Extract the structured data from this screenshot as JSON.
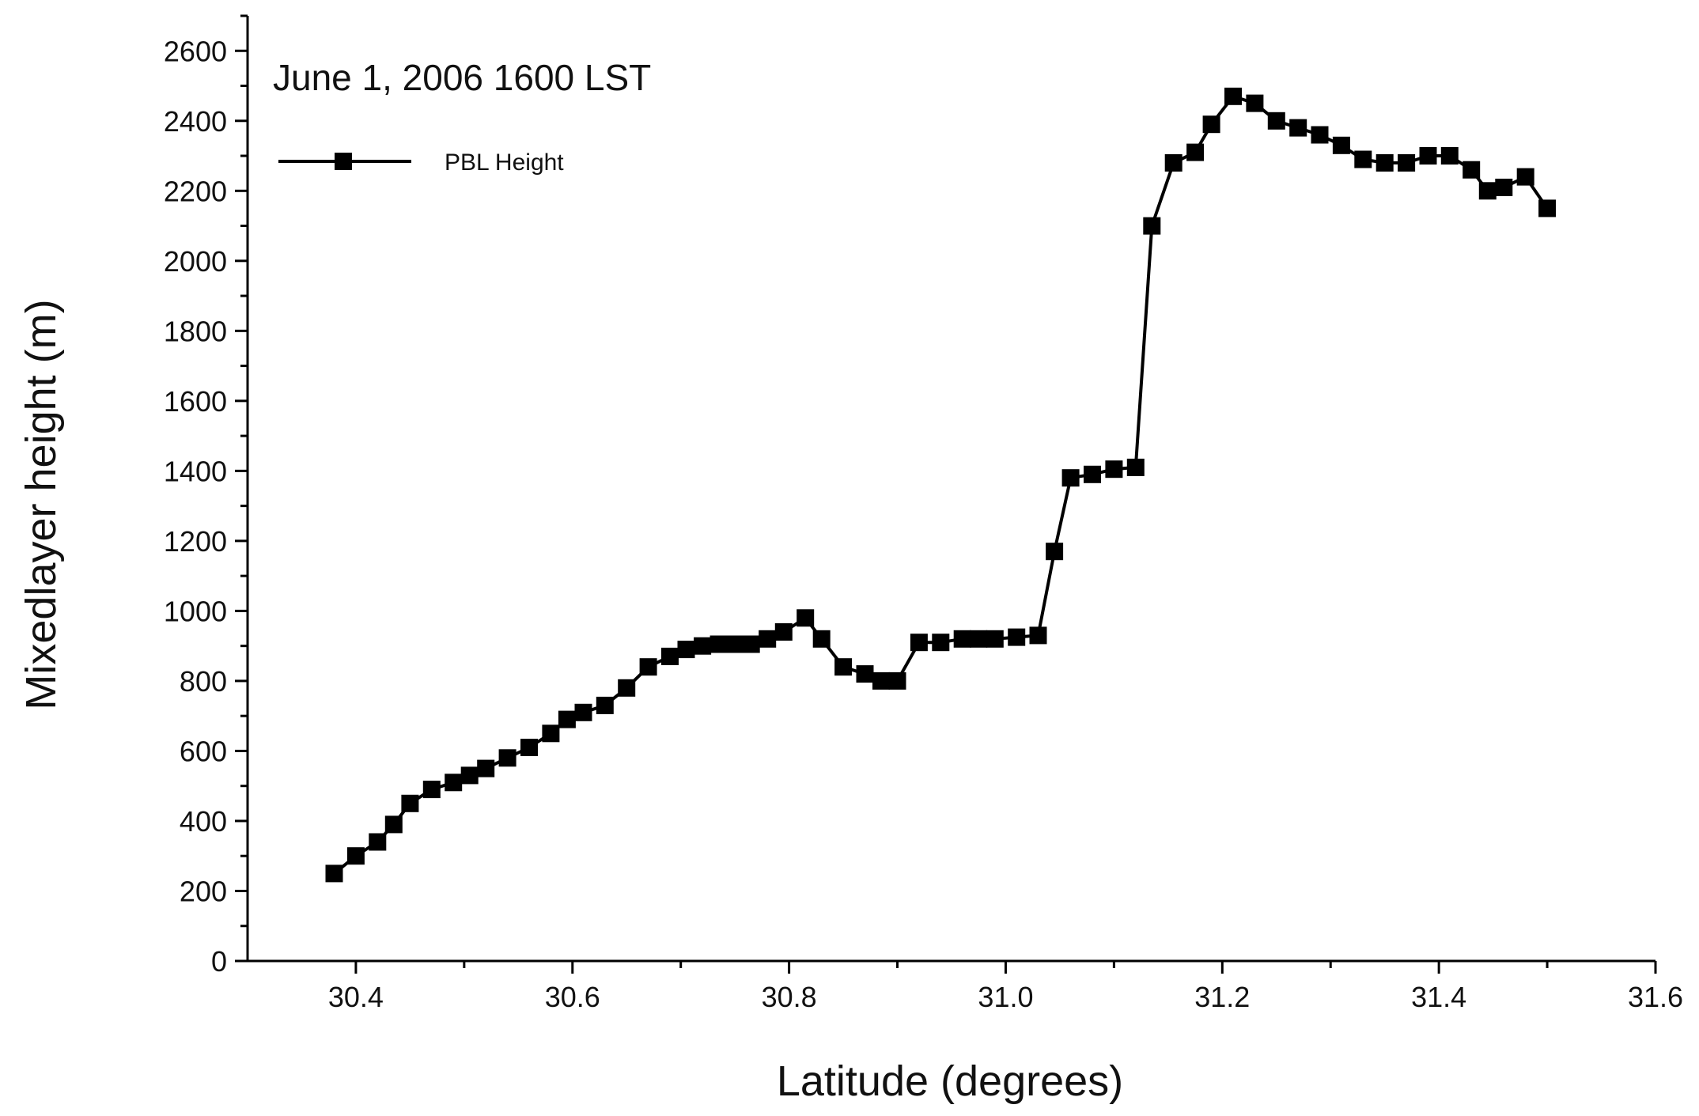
{
  "chart_data": {
    "type": "line",
    "title": "June 1, 2006 1600 LST",
    "xlabel": "Latitude (degrees)",
    "ylabel": "Mixedlayer height (m)",
    "xlim": [
      30.3,
      31.6
    ],
    "ylim": [
      0,
      2700
    ],
    "x_ticks": [
      "30.4",
      "30.6",
      "30.8",
      "31.0",
      "31.2",
      "31.4",
      "31.6"
    ],
    "y_ticks": [
      "0",
      "200",
      "400",
      "600",
      "800",
      "1000",
      "1200",
      "1400",
      "1600",
      "1800",
      "2000",
      "2200",
      "2400",
      "2600"
    ],
    "grid": false,
    "legend_position": "top-left",
    "marker": "square",
    "color": "#000000",
    "series": [
      {
        "name": "PBL Height",
        "x": [
          30.38,
          30.4,
          30.42,
          30.435,
          30.45,
          30.47,
          30.49,
          30.505,
          30.52,
          30.54,
          30.56,
          30.58,
          30.595,
          30.61,
          30.63,
          30.65,
          30.67,
          30.69,
          30.705,
          30.72,
          30.735,
          30.75,
          30.765,
          30.78,
          30.795,
          30.815,
          30.83,
          30.85,
          30.87,
          30.885,
          30.9,
          30.92,
          30.94,
          30.96,
          30.975,
          30.99,
          31.01,
          31.03,
          31.045,
          31.06,
          31.08,
          31.1,
          31.12,
          31.135,
          31.155,
          31.175,
          31.19,
          31.21,
          31.23,
          31.25,
          31.27,
          31.29,
          31.31,
          31.33,
          31.35,
          31.37,
          31.39,
          31.41,
          31.43,
          31.445,
          31.46,
          31.48,
          31.5
        ],
        "values": [
          250,
          300,
          340,
          390,
          450,
          490,
          510,
          530,
          550,
          580,
          610,
          650,
          690,
          710,
          730,
          780,
          840,
          870,
          890,
          900,
          905,
          905,
          905,
          920,
          940,
          980,
          920,
          840,
          820,
          800,
          800,
          910,
          910,
          920,
          920,
          920,
          925,
          930,
          1170,
          1380,
          1390,
          1405,
          1410,
          2100,
          2280,
          2310,
          2390,
          2470,
          2450,
          2400,
          2380,
          2360,
          2330,
          2290,
          2280,
          2280,
          2300,
          2300,
          2260,
          2200,
          2210,
          2240,
          2150
        ]
      }
    ]
  }
}
